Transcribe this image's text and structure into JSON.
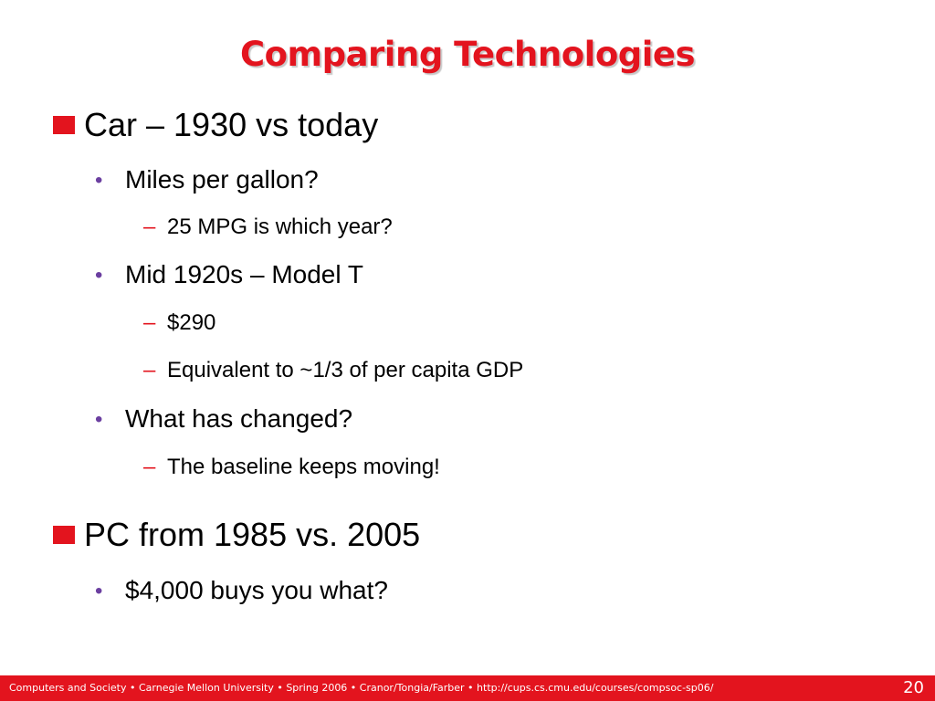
{
  "slide": {
    "title": "Comparing Technologies",
    "items": [
      {
        "text": "Car – 1930 vs today",
        "children": [
          {
            "text": "Miles per gallon?",
            "children": [
              "25 MPG is which year?"
            ]
          },
          {
            "text": "Mid 1920s – Model T",
            "children": [
              "$290",
              "Equivalent to ~1/3 of per capita GDP"
            ]
          },
          {
            "text": "What has changed?",
            "children": [
              "The baseline keeps moving!"
            ]
          }
        ]
      },
      {
        "text": "PC from 1985 vs. 2005",
        "children": [
          {
            "text": "$4,000 buys you what?",
            "children": []
          }
        ]
      }
    ],
    "footer": "Computers and Society • Carnegie Mellon University • Spring 2006 • Cranor/Tongia/Farber • http://cups.cs.cmu.edu/courses/compsoc-sp06/",
    "page_number": "20"
  }
}
